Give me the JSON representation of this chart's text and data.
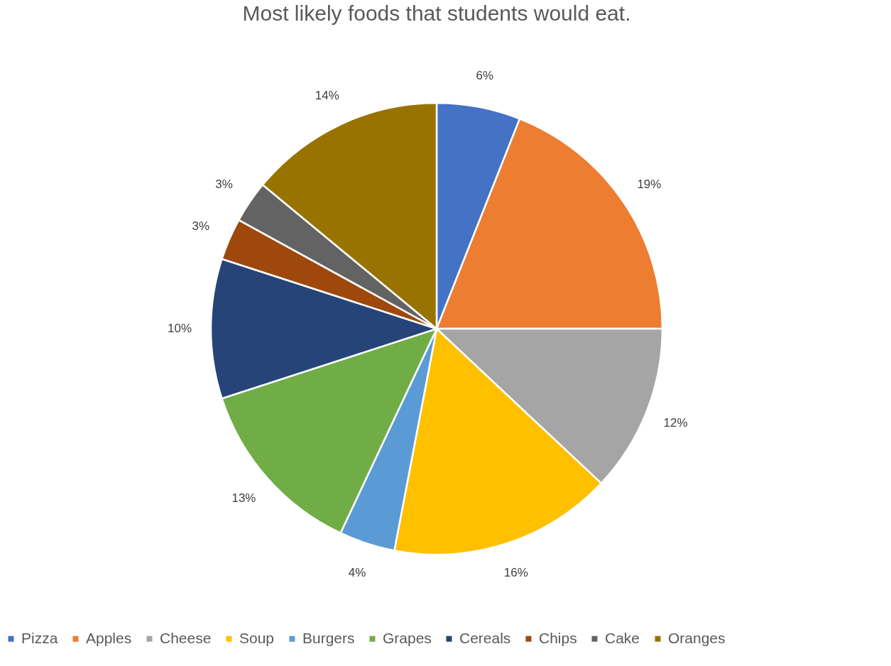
{
  "chart_data": {
    "type": "pie",
    "title": "Most likely foods that students would eat.",
    "categories": [
      "Pizza",
      "Apples",
      "Cheese",
      "Soup",
      "Burgers",
      "Grapes",
      "Cereals",
      "Chips",
      "Cake",
      "Oranges"
    ],
    "values": [
      6,
      19,
      12,
      16,
      4,
      13,
      10,
      3,
      3,
      14
    ],
    "value_labels": [
      "6%",
      "19%",
      "12%",
      "16%",
      "4%",
      "13%",
      "10%",
      "3%",
      "3%",
      "14%"
    ],
    "colors": [
      "#4472c4",
      "#ed7d31",
      "#a5a5a5",
      "#ffc000",
      "#5b9bd5",
      "#70ad47",
      "#264478",
      "#9e480e",
      "#636363",
      "#997300"
    ],
    "legend": "bottom"
  }
}
